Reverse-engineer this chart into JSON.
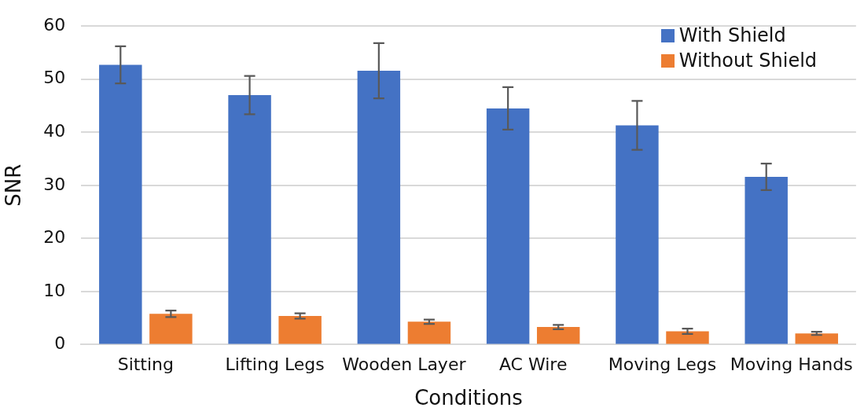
{
  "chart_data": {
    "type": "bar",
    "xlabel": "Conditions",
    "ylabel": "SNR",
    "categories": [
      "Sitting",
      "Lifting Legs",
      "Wooden Layer",
      "AC Wire",
      "Moving Legs",
      "Moving Hands"
    ],
    "series": [
      {
        "name": "With Shield",
        "color": "#4472c4",
        "values": [
          52.7,
          47.0,
          51.6,
          44.5,
          41.3,
          31.6
        ],
        "errors": [
          3.5,
          3.6,
          5.2,
          4.0,
          4.6,
          2.5
        ]
      },
      {
        "name": "Without Shield",
        "color": "#ed7d31",
        "values": [
          5.8,
          5.4,
          4.3,
          3.3,
          2.5,
          2.1
        ],
        "errors": [
          0.6,
          0.5,
          0.4,
          0.4,
          0.5,
          0.3
        ]
      }
    ],
    "ylim": [
      0,
      60
    ],
    "yticks": [
      0,
      10,
      20,
      30,
      40,
      50,
      60
    ],
    "grid": "y",
    "legend": "top right"
  }
}
